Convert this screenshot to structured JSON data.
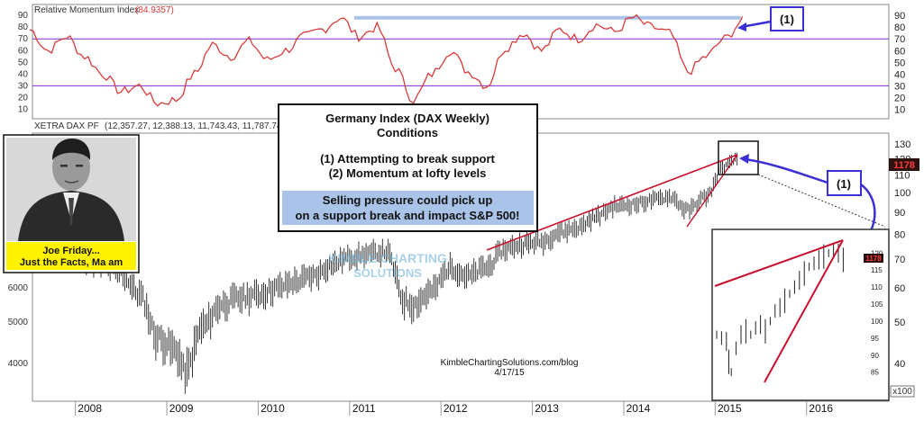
{
  "rmi_panel": {
    "title": "Relative Momentum Index",
    "value": "(84.9357)",
    "marker": "(1)"
  },
  "price_panel": {
    "title": "XETRA DAX PF",
    "ohlc": "(12,357.27, 12,388.13, 11,743.43, 11,787.74, -586.990)",
    "last_price_badge": "1178",
    "inset_badge": "1178",
    "multiplier": "x100",
    "marker": "(1)"
  },
  "annotation_box": {
    "title": "Germany Index (DAX Weekly)",
    "subtitle": "Conditions",
    "line1": "(1) Attempting to break support",
    "line2": "(2) Momentum at lofty levels",
    "highlight1": "Selling pressure could pick up",
    "highlight2": "on a support break and impact S&P 500!"
  },
  "photo_caption": {
    "line1": "Joe Friday...",
    "line2": "Just the Facts, Ma am"
  },
  "watermark": {
    "line1": "KIMBLE CHARTING",
    "line2": "SOLUTIONS"
  },
  "credit": {
    "site": "KimbleChartingSolutions.com/blog",
    "date": "4/17/15"
  },
  "colors": {
    "rmi_line": "#d93a3a",
    "price_bars": "#222222",
    "trendline": "#c8102e",
    "blue_arrow": "#3b2fd6",
    "highlight_bar": "#a9c4e8",
    "caption_bg": "#fff200",
    "rmi_upper_line": "#7b2fd6"
  },
  "chart_data": [
    {
      "type": "line",
      "title": "Relative Momentum Index",
      "yticks": [
        10,
        20,
        30,
        40,
        50,
        60,
        70,
        80,
        90
      ],
      "ylim": [
        5,
        97
      ],
      "reference_lines": [
        70,
        30
      ],
      "highlight_level": 88,
      "x": [
        2007.5,
        2007.7,
        2007.9,
        2008.1,
        2008.3,
        2008.5,
        2008.7,
        2008.9,
        2009.1,
        2009.3,
        2009.5,
        2009.7,
        2009.9,
        2010.1,
        2010.3,
        2010.5,
        2010.7,
        2010.9,
        2011.1,
        2011.3,
        2011.5,
        2011.7,
        2011.9,
        2012.1,
        2012.3,
        2012.5,
        2012.7,
        2012.9,
        2013.1,
        2013.3,
        2013.5,
        2013.7,
        2013.9,
        2014.1,
        2014.3,
        2014.5,
        2014.7,
        2014.9,
        2015.1,
        2015.3
      ],
      "values": [
        78,
        60,
        72,
        55,
        40,
        25,
        30,
        15,
        18,
        40,
        65,
        55,
        68,
        52,
        60,
        72,
        78,
        88,
        72,
        80,
        45,
        18,
        40,
        60,
        42,
        30,
        62,
        75,
        60,
        78,
        70,
        82,
        76,
        88,
        80,
        75,
        42,
        55,
        70,
        85
      ]
    },
    {
      "type": "line",
      "title": "XETRA DAX PF",
      "xlabel": "",
      "ylabel": "",
      "xticks": [
        "2008",
        "2009",
        "2010",
        "2011",
        "2012",
        "2013",
        "2014",
        "2015",
        "2016"
      ],
      "yticks_left": [
        4000,
        5000,
        6000
      ],
      "yticks_right": [
        40,
        50,
        60,
        70,
        80,
        90,
        100,
        110,
        120,
        130
      ],
      "x": [
        2007.5,
        2007.7,
        2007.9,
        2008.1,
        2008.3,
        2008.5,
        2008.7,
        2008.9,
        2009.1,
        2009.2,
        2009.4,
        2009.6,
        2009.8,
        2010.0,
        2010.2,
        2010.4,
        2010.6,
        2010.8,
        2011.0,
        2011.2,
        2011.4,
        2011.6,
        2011.7,
        2011.9,
        2012.1,
        2012.3,
        2012.5,
        2012.7,
        2012.9,
        2013.1,
        2013.3,
        2013.5,
        2013.7,
        2013.9,
        2014.1,
        2014.3,
        2014.5,
        2014.7,
        2014.9,
        2015.1,
        2015.25
      ],
      "values": [
        7800,
        7900,
        8000,
        7000,
        6800,
        6500,
        5800,
        4600,
        4300,
        3800,
        4900,
        5500,
        5700,
        5800,
        6000,
        6200,
        6400,
        6800,
        7100,
        7200,
        7300,
        5600,
        5500,
        5900,
        6700,
        6400,
        6700,
        7400,
        7600,
        7700,
        8100,
        8300,
        8800,
        9300,
        9400,
        9600,
        9800,
        9100,
        9800,
        11500,
        12000
      ]
    }
  ]
}
